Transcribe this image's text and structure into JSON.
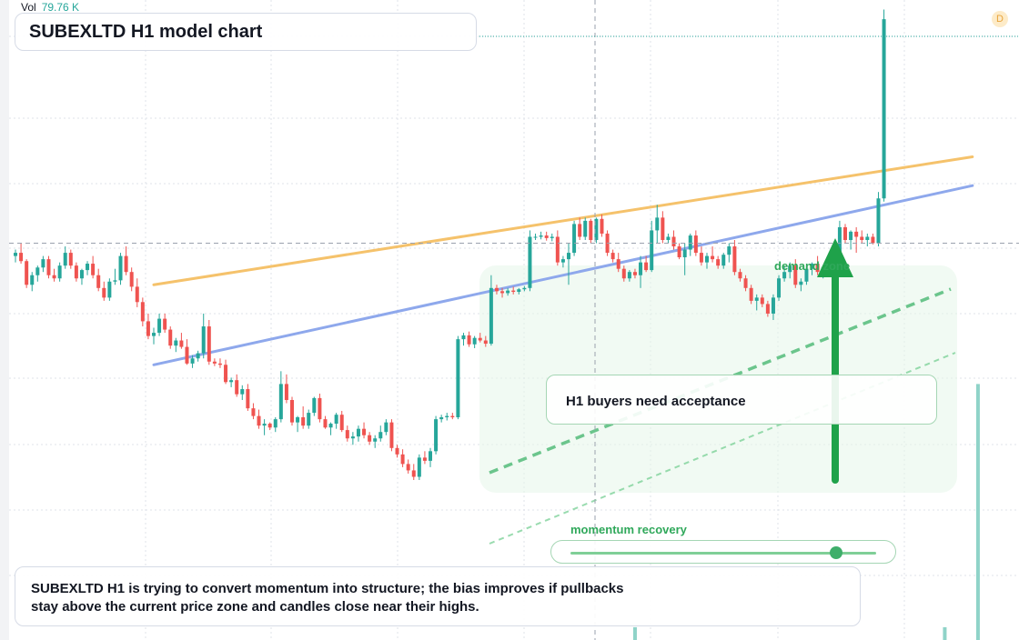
{
  "header": {
    "vol_label": "Vol",
    "vol_value": "79.76 K",
    "title": "SUBEXLTD H1 model chart",
    "flag_letter": "D"
  },
  "annotations": {
    "callout": "H1 buyers need acceptance",
    "zone_label": "demand zone",
    "momentum_label": "momentum recovery",
    "momentum_level": 0.87
  },
  "summary": {
    "line1": "SUBEXLTD H1 is trying to convert momentum into structure; the bias improves if pullbacks",
    "line2": "stay above the current price zone and candles close near their highs."
  },
  "colors": {
    "up": "#26a69a",
    "down": "#ef5350",
    "orange_line": "#f5c26b",
    "blue_line": "#8ea8ec",
    "green_accent": "#2fa85a",
    "arrow": "#1fa24a",
    "volume": "#8fd3c8"
  },
  "chart_data": {
    "type": "candlestick",
    "interval": "H1",
    "ylim": [
      0,
      100
    ],
    "grid": true,
    "current_price_line": 62,
    "candles": [
      [
        60.0,
        61.0,
        59.0,
        60.5
      ],
      [
        60.5,
        62.0,
        58.8,
        59.2
      ],
      [
        59.2,
        59.5,
        55.0,
        55.5
      ],
      [
        55.5,
        57.5,
        54.5,
        57.0
      ],
      [
        57.0,
        58.5,
        56.0,
        58.2
      ],
      [
        58.2,
        60.0,
        57.5,
        59.5
      ],
      [
        59.5,
        60.0,
        56.5,
        57.0
      ],
      [
        57.0,
        58.0,
        56.0,
        56.5
      ],
      [
        56.5,
        59.0,
        56.0,
        58.5
      ],
      [
        58.5,
        61.5,
        58.0,
        60.5
      ],
      [
        60.5,
        61.0,
        58.0,
        58.5
      ],
      [
        58.5,
        59.0,
        56.0,
        56.5
      ],
      [
        56.5,
        58.0,
        55.5,
        57.8
      ],
      [
        57.8,
        59.2,
        57.0,
        58.8
      ],
      [
        58.8,
        60.0,
        56.5,
        57.0
      ],
      [
        57.0,
        58.0,
        54.5,
        55.0
      ],
      [
        55.0,
        56.0,
        53.0,
        53.5
      ],
      [
        53.5,
        56.5,
        53.0,
        56.0
      ],
      [
        56.0,
        58.0,
        55.5,
        56.2
      ],
      [
        56.2,
        60.5,
        55.5,
        60.0
      ],
      [
        60.0,
        61.5,
        57.0,
        57.5
      ],
      [
        57.5,
        58.2,
        54.5,
        55.2
      ],
      [
        55.2,
        56.5,
        52.0,
        52.8
      ],
      [
        52.8,
        53.5,
        49.0,
        49.8
      ],
      [
        49.8,
        51.0,
        47.0,
        47.5
      ],
      [
        47.5,
        48.8,
        46.2,
        48.0
      ],
      [
        48.0,
        51.0,
        47.5,
        50.2
      ],
      [
        50.2,
        51.0,
        48.0,
        48.5
      ],
      [
        48.5,
        49.0,
        45.5,
        46.0
      ],
      [
        46.0,
        47.2,
        45.0,
        46.8
      ],
      [
        46.8,
        48.0,
        45.5,
        45.8
      ],
      [
        45.8,
        47.0,
        43.0,
        43.2
      ],
      [
        43.2,
        44.5,
        42.5,
        44.0
      ],
      [
        44.0,
        45.2,
        43.5,
        44.8
      ],
      [
        44.8,
        51.0,
        44.0,
        49.0
      ],
      [
        49.0,
        50.0,
        43.0,
        43.5
      ],
      [
        43.5,
        44.0,
        42.8,
        43.2
      ],
      [
        43.2,
        44.0,
        42.5,
        43.0
      ],
      [
        43.0,
        43.8,
        40.0,
        40.3
      ],
      [
        40.3,
        41.0,
        39.5,
        40.6
      ],
      [
        40.6,
        41.5,
        38.0,
        38.4
      ],
      [
        38.4,
        39.8,
        37.5,
        39.2
      ],
      [
        39.2,
        40.0,
        35.8,
        36.2
      ],
      [
        36.2,
        37.0,
        34.5,
        35.0
      ],
      [
        35.0,
        36.0,
        33.0,
        33.5
      ],
      [
        33.5,
        34.5,
        32.0,
        33.8
      ],
      [
        33.8,
        34.0,
        32.8,
        33.2
      ],
      [
        33.2,
        34.8,
        32.5,
        34.5
      ],
      [
        34.5,
        42.0,
        34.0,
        40.0
      ],
      [
        40.0,
        41.5,
        37.0,
        37.5
      ],
      [
        37.5,
        38.0,
        33.5,
        34.0
      ],
      [
        34.0,
        35.0,
        32.5,
        34.8
      ],
      [
        34.8,
        36.5,
        33.0,
        33.5
      ],
      [
        33.5,
        36.0,
        33.0,
        35.5
      ],
      [
        35.5,
        38.0,
        35.0,
        37.8
      ],
      [
        37.8,
        38.5,
        34.0,
        34.5
      ],
      [
        34.5,
        35.0,
        33.0,
        33.2
      ],
      [
        33.2,
        34.0,
        32.0,
        33.8
      ],
      [
        33.8,
        35.5,
        33.0,
        35.2
      ],
      [
        35.2,
        35.8,
        32.5,
        32.8
      ],
      [
        32.8,
        33.5,
        31.0,
        31.5
      ],
      [
        31.5,
        32.5,
        30.5,
        31.8
      ],
      [
        31.8,
        33.5,
        31.0,
        33.0
      ],
      [
        33.0,
        34.0,
        31.5,
        32.0
      ],
      [
        32.0,
        32.5,
        30.5,
        31.0
      ],
      [
        31.0,
        32.0,
        30.0,
        31.5
      ],
      [
        31.5,
        33.5,
        31.0,
        32.5
      ],
      [
        32.5,
        34.5,
        32.0,
        34.0
      ],
      [
        34.0,
        34.5,
        29.5,
        30.0
      ],
      [
        30.0,
        30.5,
        28.5,
        29.0
      ],
      [
        29.0,
        29.8,
        27.0,
        27.5
      ],
      [
        27.5,
        28.2,
        26.0,
        26.5
      ],
      [
        26.5,
        27.5,
        25.0,
        25.5
      ],
      [
        25.5,
        29.0,
        25.0,
        28.5
      ],
      [
        28.5,
        29.5,
        27.5,
        28.0
      ],
      [
        28.0,
        30.0,
        27.0,
        29.5
      ],
      [
        29.5,
        35.0,
        29.0,
        34.5
      ],
      [
        34.5,
        35.2,
        34.0,
        34.8
      ],
      [
        34.8,
        35.5,
        34.3,
        35.0
      ],
      [
        35.0,
        35.5,
        34.5,
        34.8
      ],
      [
        34.8,
        47.5,
        34.5,
        47.0
      ],
      [
        47.0,
        48.0,
        46.0,
        47.6
      ],
      [
        47.6,
        48.2,
        45.8,
        46.2
      ],
      [
        46.2,
        47.5,
        45.6,
        47.2
      ],
      [
        47.2,
        48.0,
        46.5,
        46.8
      ],
      [
        46.8,
        47.5,
        45.8,
        46.3
      ],
      [
        46.3,
        57.0,
        46.0,
        55.0
      ],
      [
        55.0,
        55.5,
        54.0,
        54.5
      ],
      [
        54.5,
        55.0,
        53.5,
        54.2
      ],
      [
        54.2,
        55.0,
        53.8,
        54.6
      ],
      [
        54.6,
        55.2,
        54.0,
        54.4
      ],
      [
        54.4,
        55.0,
        54.0,
        54.8
      ],
      [
        54.8,
        55.3,
        54.5,
        55.0
      ],
      [
        55.0,
        64.0,
        54.5,
        63.0
      ],
      [
        63.0,
        63.5,
        62.5,
        63.0
      ],
      [
        63.0,
        63.8,
        62.6,
        63.2
      ],
      [
        63.2,
        63.8,
        62.4,
        62.8
      ],
      [
        62.8,
        63.5,
        62.3,
        63.0
      ],
      [
        63.0,
        64.0,
        58.5,
        59.0
      ],
      [
        59.0,
        60.0,
        58.2,
        59.5
      ],
      [
        59.5,
        62.0,
        55.5,
        60.5
      ],
      [
        60.5,
        65.5,
        60.0,
        65.0
      ],
      [
        65.0,
        66.0,
        62.5,
        63.0
      ],
      [
        63.0,
        66.0,
        62.5,
        65.5
      ],
      [
        65.5,
        65.8,
        62.0,
        62.5
      ],
      [
        62.5,
        66.0,
        62.0,
        65.8
      ],
      [
        65.8,
        66.5,
        63.0,
        63.5
      ],
      [
        63.5,
        64.0,
        60.0,
        60.5
      ],
      [
        60.5,
        61.0,
        59.0,
        59.5
      ],
      [
        59.5,
        60.5,
        57.5,
        58.0
      ],
      [
        58.0,
        58.5,
        56.0,
        56.5
      ],
      [
        56.5,
        57.8,
        56.0,
        57.5
      ],
      [
        57.5,
        58.0,
        56.5,
        57.0
      ],
      [
        57.0,
        60.0,
        55.0,
        59.0
      ],
      [
        59.0,
        60.0,
        57.5,
        57.8
      ],
      [
        57.8,
        65.5,
        57.5,
        64.0
      ],
      [
        64.0,
        68.0,
        62.0,
        66.0
      ],
      [
        66.0,
        67.0,
        62.0,
        62.5
      ],
      [
        62.5,
        63.5,
        62.0,
        63.0
      ],
      [
        63.0,
        64.0,
        61.0,
        61.5
      ],
      [
        61.5,
        62.0,
        59.5,
        59.8
      ],
      [
        59.8,
        62.0,
        57.0,
        61.0
      ],
      [
        61.0,
        63.5,
        60.0,
        63.2
      ],
      [
        63.2,
        64.0,
        60.0,
        60.5
      ],
      [
        60.5,
        61.5,
        58.5,
        59.0
      ],
      [
        59.0,
        60.5,
        58.0,
        60.0
      ],
      [
        60.0,
        61.5,
        59.0,
        59.5
      ],
      [
        59.5,
        60.0,
        58.0,
        58.5
      ],
      [
        58.5,
        60.5,
        58.0,
        60.2
      ],
      [
        60.2,
        62.0,
        59.0,
        61.5
      ],
      [
        61.5,
        62.5,
        57.0,
        57.5
      ],
      [
        57.5,
        58.0,
        56.0,
        56.5
      ],
      [
        56.5,
        57.0,
        54.5,
        55.0
      ],
      [
        55.0,
        55.5,
        52.5,
        53.0
      ],
      [
        53.0,
        54.0,
        51.5,
        53.5
      ],
      [
        53.5,
        54.0,
        52.0,
        52.5
      ],
      [
        52.5,
        53.0,
        50.5,
        51.0
      ],
      [
        51.0,
        54.0,
        50.0,
        53.5
      ],
      [
        53.5,
        57.0,
        53.0,
        56.5
      ],
      [
        56.5,
        58.5,
        56.0,
        57.5
      ],
      [
        57.5,
        59.0,
        56.5,
        58.5
      ],
      [
        58.5,
        59.5,
        55.0,
        55.5
      ],
      [
        55.5,
        56.5,
        54.5,
        56.0
      ],
      [
        56.0,
        58.5,
        55.5,
        58.0
      ],
      [
        58.0,
        59.0,
        57.0,
        58.8
      ],
      [
        58.8,
        60.0,
        57.0,
        57.5
      ],
      [
        57.5,
        58.5,
        56.5,
        58.2
      ],
      [
        58.2,
        60.0,
        57.5,
        59.5
      ],
      [
        59.5,
        60.5,
        58.0,
        60.0
      ],
      [
        60.0,
        65.5,
        59.5,
        64.5
      ],
      [
        64.5,
        65.0,
        62.0,
        62.5
      ],
      [
        62.5,
        64.0,
        61.0,
        63.8
      ],
      [
        63.8,
        64.5,
        60.5,
        63.0
      ],
      [
        63.0,
        64.0,
        62.0,
        62.5
      ],
      [
        62.5,
        63.5,
        61.5,
        63.0
      ],
      [
        63.0,
        63.5,
        61.8,
        62.0
      ],
      [
        62.0,
        70.0,
        61.5,
        69.0
      ],
      [
        69.0,
        98.5,
        68.5,
        97.0
      ]
    ],
    "volume": [
      {
        "index": 112,
        "value": 2
      },
      {
        "index": 168,
        "value": 2
      },
      {
        "index": 174,
        "value": 40
      }
    ],
    "trendlines": [
      {
        "name": "",
        "color": "orange",
        "from": [
          25,
          55.5
        ],
        "to": [
          173,
          75.5
        ]
      },
      {
        "name": "",
        "color": "blue",
        "from": [
          25,
          43.0
        ],
        "to": [
          173,
          71.0
        ]
      }
    ]
  }
}
